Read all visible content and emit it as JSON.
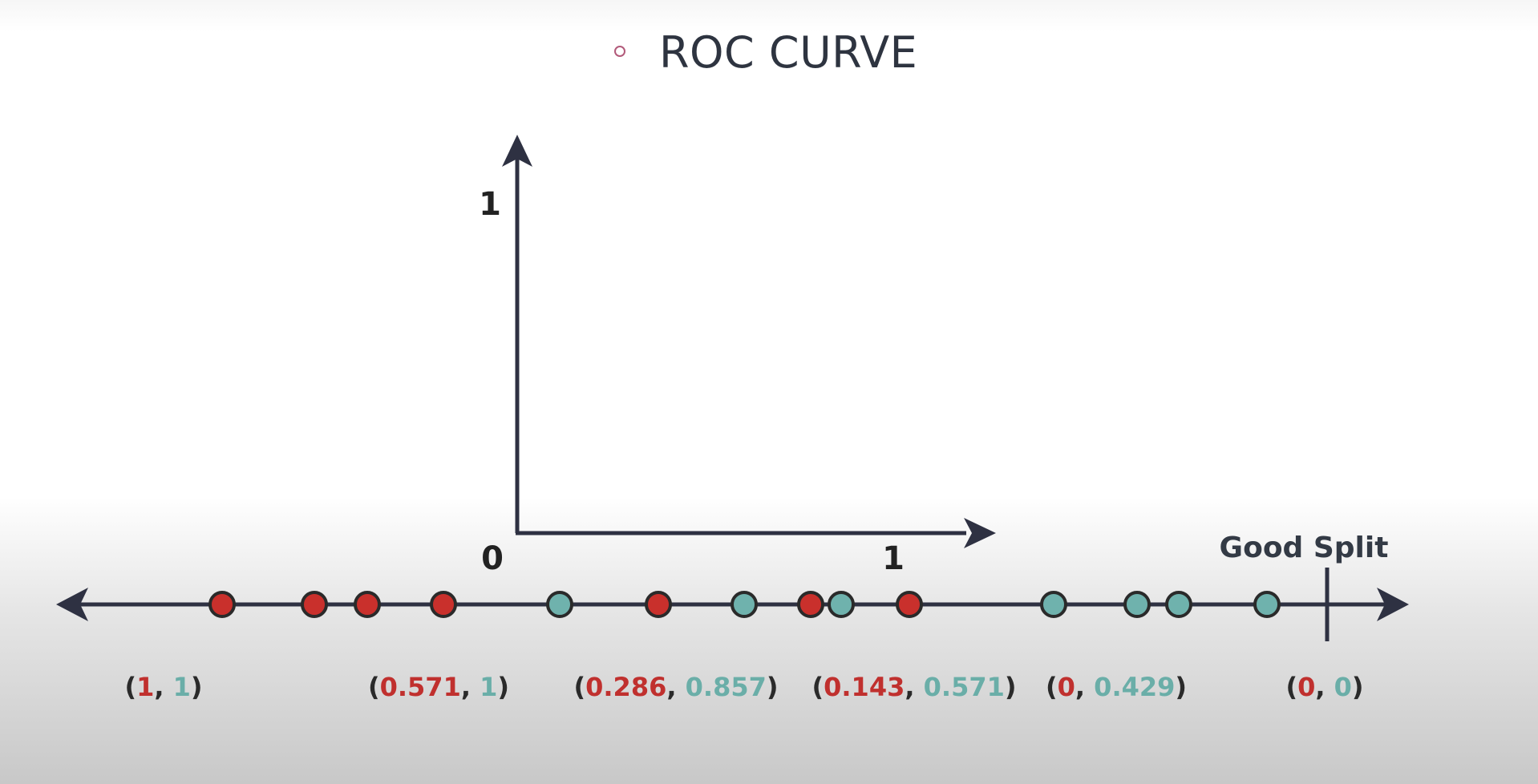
{
  "title": "ROC CURVE",
  "colors": {
    "negative": "#c9302c",
    "positive": "#6fb2ad",
    "axis": "#2e3142",
    "fpr_text": "#c0302e",
    "tpr_text": "#6aaea8"
  },
  "axes": {
    "y_top_label": "1",
    "origin_label": "0",
    "x_right_label": "1"
  },
  "good_split_label": "Good Split",
  "number_line_points": [
    {
      "class": "negative"
    },
    {
      "class": "negative"
    },
    {
      "class": "negative"
    },
    {
      "class": "negative"
    },
    {
      "class": "positive"
    },
    {
      "class": "negative"
    },
    {
      "class": "positive"
    },
    {
      "class": "negative"
    },
    {
      "class": "positive"
    },
    {
      "class": "negative"
    },
    {
      "class": "positive"
    },
    {
      "class": "positive"
    },
    {
      "class": "positive"
    },
    {
      "class": "positive"
    }
  ],
  "pairs": [
    {
      "fpr": "1",
      "tpr": "1"
    },
    {
      "fpr": "0.571",
      "tpr": "1"
    },
    {
      "fpr": "0.286",
      "tpr": "0.857"
    },
    {
      "fpr": "0.143",
      "tpr": "0.571"
    },
    {
      "fpr": "0",
      "tpr": "0.429"
    },
    {
      "fpr": "0",
      "tpr": "0"
    }
  ]
}
